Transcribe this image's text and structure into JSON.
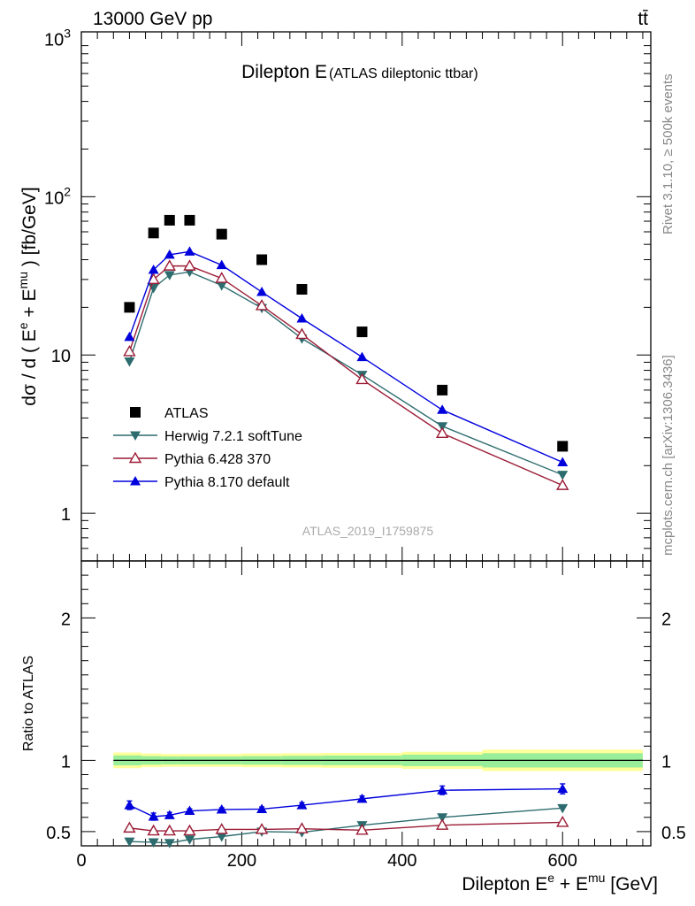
{
  "header": {
    "energy_label": "13000 GeV pp",
    "process_label": "tt̄"
  },
  "side_labels": {
    "rivet": "Rivet 3.1.10, ≥ 500k events",
    "site": "mcplots.cern.ch [arXiv:1306.3436]"
  },
  "chart_data": [
    {
      "type": "line",
      "panel": "main",
      "title": "Dilepton E",
      "subtitle": "(ATLAS dileptonic ttbar)",
      "analysis_id": "ATLAS_2019_I1759875",
      "ylabel_main": "dσ / d ( E",
      "ylabel_sup1": "e",
      "ylabel_mid": " + E",
      "ylabel_sup2": "mu",
      "ylabel_tail": " ) [fb/GeV]",
      "yscale": "log",
      "ylim": [
        0.5,
        1100
      ],
      "xlim": [
        0,
        710
      ],
      "ytick_labels": [
        "1",
        "10",
        "10",
        "10"
      ],
      "ytick_sups": [
        "",
        "",
        "2",
        "3"
      ],
      "grid": false,
      "legend_position": "bottom-left",
      "x": [
        60,
        90,
        110,
        135,
        175,
        225,
        275,
        350,
        450,
        600
      ],
      "series": [
        {
          "name": "ATLAS",
          "marker": "square",
          "color": "#000000",
          "line": false,
          "values": [
            20,
            59,
            71,
            71,
            58,
            40,
            26,
            14,
            6,
            2.65
          ]
        },
        {
          "name": "Herwig 7.2.1 softTune",
          "marker": "triangle-down",
          "color": "#2d6c6e",
          "line": true,
          "values": [
            9.1,
            26.5,
            32,
            33.5,
            27.5,
            19.8,
            12.7,
            7.5,
            3.55,
            1.75
          ]
        },
        {
          "name": "Pythia 6.428 370",
          "marker": "triangle-up-open",
          "color": "#9b1c36",
          "line": true,
          "values": [
            10.5,
            30,
            36.5,
            36.5,
            30.5,
            20.5,
            13.5,
            7.0,
            3.2,
            1.5
          ]
        },
        {
          "name": "Pythia 8.170 default",
          "marker": "triangle-up",
          "color": "#0000dd",
          "line": true,
          "values": [
            13,
            34.5,
            43,
            45,
            37,
            25,
            17,
            9.7,
            4.5,
            2.1
          ]
        }
      ]
    },
    {
      "type": "line",
      "panel": "ratio",
      "ylabel": "Ratio to ATLAS",
      "xlabel_main": "Dilepton E",
      "xlabel_sup1": "e",
      "xlabel_mid": " + E",
      "xlabel_sup2": "mu",
      "xlabel_tail": " [GeV]",
      "ylim": [
        0.4,
        2.4
      ],
      "xlim": [
        0,
        710
      ],
      "ytick_labels": [
        "0.5",
        "1",
        "2"
      ],
      "xtick_labels": [
        "0",
        "200",
        "400",
        "600"
      ],
      "reference_line": 1,
      "x": [
        60,
        90,
        110,
        135,
        175,
        225,
        275,
        350,
        450,
        600
      ],
      "uncertainty_bands": {
        "bins": [
          [
            40,
            75
          ],
          [
            75,
            100
          ],
          [
            100,
            120
          ],
          [
            120,
            150
          ],
          [
            150,
            200
          ],
          [
            200,
            250
          ],
          [
            250,
            300
          ],
          [
            300,
            400
          ],
          [
            400,
            500
          ],
          [
            500,
            700
          ]
        ],
        "yellow_halfwidth": [
          0.055,
          0.048,
          0.045,
          0.045,
          0.045,
          0.048,
          0.05,
          0.052,
          0.06,
          0.075
        ],
        "green_halfwidth": [
          0.035,
          0.03,
          0.028,
          0.028,
          0.028,
          0.03,
          0.032,
          0.034,
          0.04,
          0.05
        ],
        "yellow_color": "#ffff99",
        "green_color": "#99ee99"
      },
      "series": [
        {
          "name": "Herwig 7.2.1 softTune",
          "marker": "triangle-down",
          "color": "#2d6c6e",
          "values": [
            0.43,
            0.425,
            0.42,
            0.445,
            0.465,
            0.5,
            0.495,
            0.545,
            0.6,
            0.665
          ],
          "errors": [
            0,
            0,
            0,
            0,
            0,
            0,
            0,
            0,
            0,
            0
          ]
        },
        {
          "name": "Pythia 6.428 370",
          "marker": "triangle-up-open",
          "color": "#9b1c36",
          "values": [
            0.525,
            0.505,
            0.505,
            0.505,
            0.515,
            0.515,
            0.52,
            0.51,
            0.545,
            0.565
          ],
          "errors": [
            0,
            0,
            0,
            0,
            0,
            0,
            0,
            0,
            0,
            0
          ]
        },
        {
          "name": "Pythia 8.170 default",
          "marker": "triangle-up",
          "color": "#0000dd",
          "values": [
            0.685,
            0.605,
            0.615,
            0.645,
            0.655,
            0.658,
            0.685,
            0.73,
            0.79,
            0.8
          ],
          "errors": [
            0.03,
            0.025,
            0.02,
            0.015,
            0.012,
            0.015,
            0.018,
            0.02,
            0.03,
            0.035
          ]
        }
      ]
    }
  ]
}
